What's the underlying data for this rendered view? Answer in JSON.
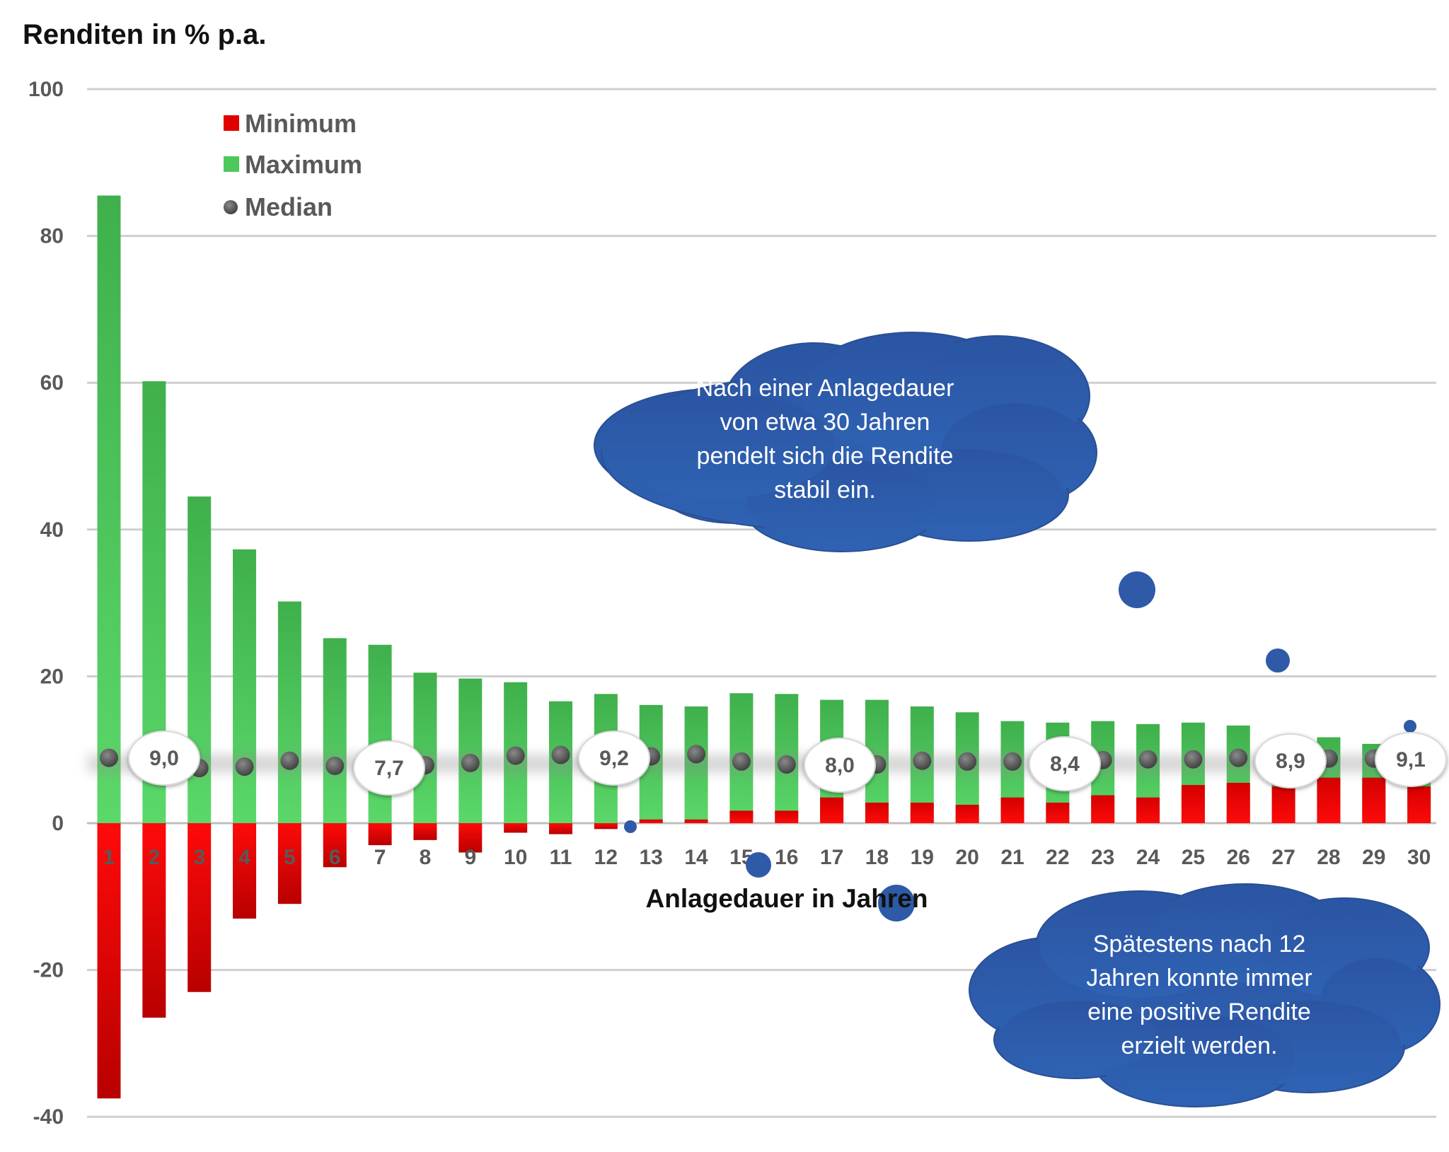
{
  "chart_data": {
    "type": "bar",
    "title": "Renditen in % p.a.",
    "xlabel": "Anlagedauer in Jahren",
    "ylabel": "Renditen in % p.a.",
    "ylim": [
      -40,
      100
    ],
    "yticks": [
      100,
      80,
      60,
      40,
      20,
      0,
      -20,
      -40
    ],
    "grid": true,
    "legend_position": "top-left",
    "categories": [
      "1",
      "2",
      "3",
      "4",
      "5",
      "6",
      "7",
      "8",
      "9",
      "10",
      "11",
      "12",
      "13",
      "14",
      "15",
      "16",
      "17",
      "18",
      "19",
      "20",
      "21",
      "22",
      "23",
      "24",
      "25",
      "26",
      "27",
      "28",
      "29",
      "30"
    ],
    "series": [
      {
        "name": "Minimum",
        "color": "#e00000",
        "values": [
          -37.5,
          -26.5,
          -23.0,
          -13.0,
          -11.0,
          -6.0,
          -3.0,
          -2.3,
          -4.0,
          -1.3,
          -1.5,
          -0.8,
          0.5,
          0.5,
          1.7,
          1.7,
          3.5,
          2.8,
          2.8,
          2.5,
          3.5,
          2.8,
          3.8,
          3.5,
          5.2,
          5.5,
          5.0,
          6.2,
          6.2,
          5.0
        ]
      },
      {
        "name": "Maximum",
        "color": "#4cc95a",
        "values": [
          85.5,
          60.2,
          44.5,
          37.3,
          30.2,
          25.2,
          24.3,
          20.5,
          19.7,
          19.2,
          16.6,
          17.6,
          16.1,
          15.9,
          17.7,
          17.6,
          16.8,
          16.8,
          15.9,
          15.1,
          13.9,
          13.7,
          13.9,
          13.5,
          13.7,
          13.3,
          11.5,
          11.7,
          10.8,
          9.8
        ]
      },
      {
        "name": "Median",
        "color": "#555555",
        "values": [
          8.9,
          9.0,
          7.5,
          7.7,
          8.5,
          7.8,
          7.7,
          7.9,
          8.2,
          9.2,
          9.3,
          9.2,
          9.1,
          9.4,
          8.4,
          8.0,
          8.0,
          8.0,
          8.5,
          8.4,
          8.4,
          8.4,
          8.6,
          8.7,
          8.7,
          8.9,
          8.9,
          8.8,
          8.8,
          9.1
        ]
      }
    ],
    "median_labels": [
      {
        "category": "2",
        "text": "9,0"
      },
      {
        "category": "7",
        "text": "7,7"
      },
      {
        "category": "12",
        "text": "9,2"
      },
      {
        "category": "17",
        "text": "8,0"
      },
      {
        "category": "22",
        "text": "8,4"
      },
      {
        "category": "27",
        "text": "8,9"
      },
      {
        "category": "30",
        "text": "9,1"
      }
    ],
    "annotations": [
      {
        "text_lines": [
          "Nach einer Anlagedauer",
          "von etwa 30 Jahren",
          "pendelt sich die Rendite",
          "stabil ein."
        ],
        "color": "#2e5aa7"
      },
      {
        "text_lines": [
          "Spätestens nach 12",
          "Jahren konnte immer",
          "eine positive Rendite",
          "erzielt werden."
        ],
        "color": "#2e5aa7"
      }
    ]
  }
}
